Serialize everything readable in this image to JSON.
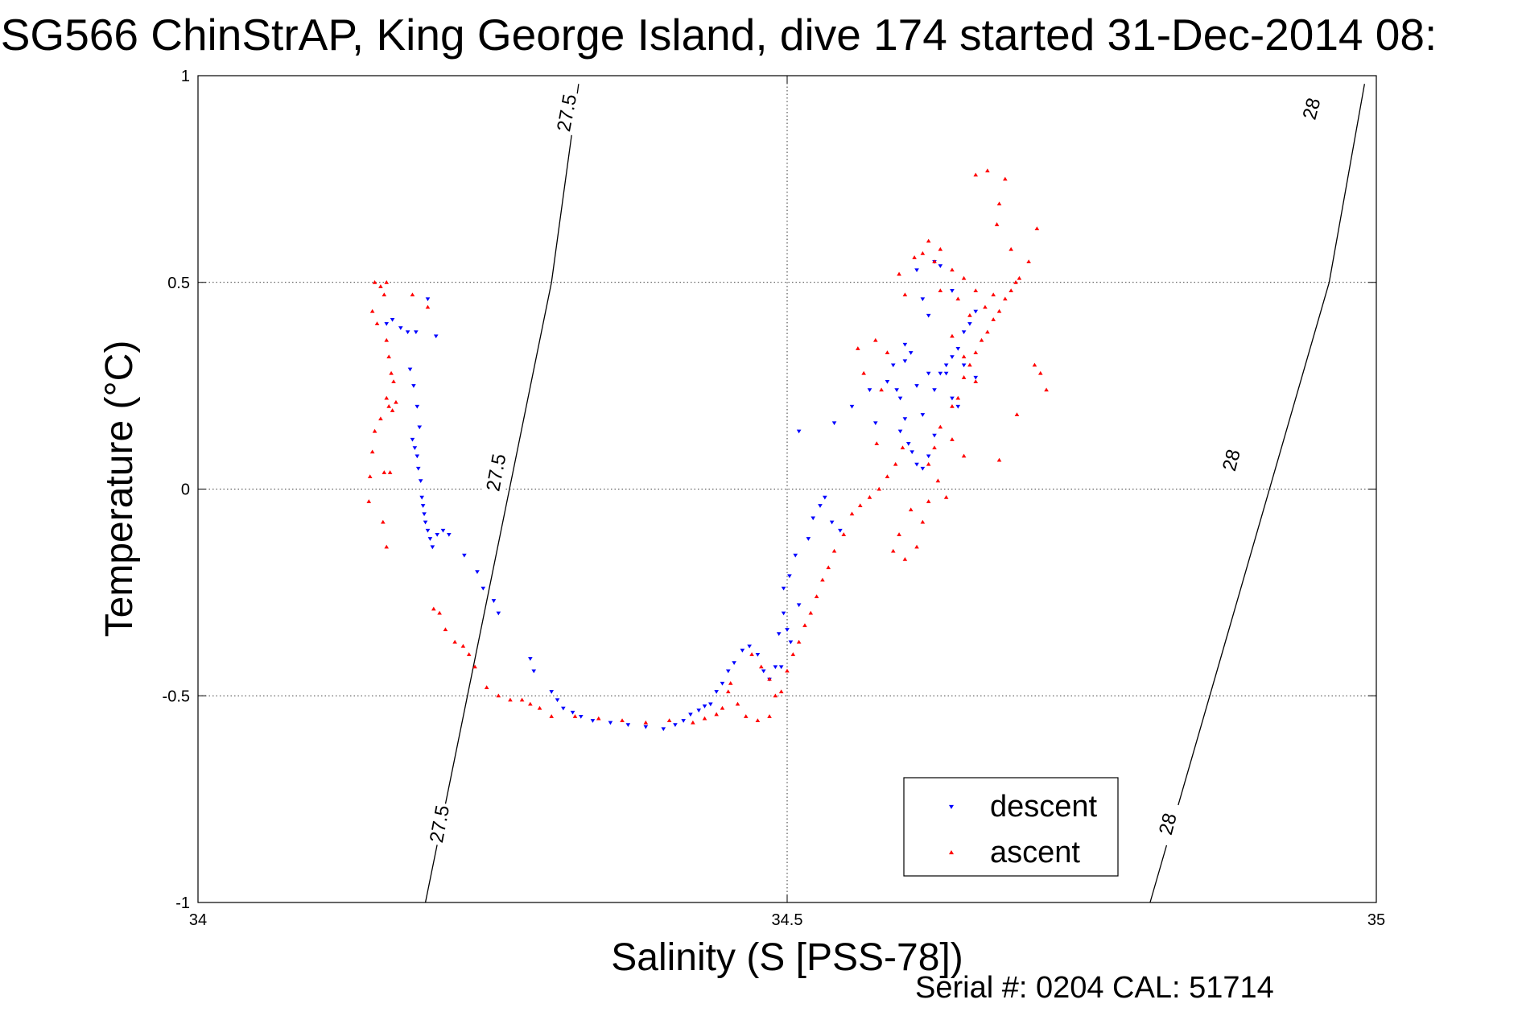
{
  "chart_data": {
    "type": "scatter",
    "title": "SG566 ChinStrAP, King George Island, dive 174 started 31-Dec-2014 08:",
    "xlabel": "Salinity (S [PSS-78])",
    "ylabel": "Temperature (°C)",
    "xlim": [
      34,
      35
    ],
    "ylim": [
      -1,
      1
    ],
    "xticks": [
      34,
      34.5,
      35
    ],
    "yticks": [
      -1,
      -0.5,
      0,
      0.5,
      1
    ],
    "xtick_labels": [
      "34",
      "34.5",
      "35"
    ],
    "ytick_labels": [
      "-1",
      "-0.5",
      "0",
      "0.5",
      "1"
    ],
    "grid": true,
    "legend_position": "bottom-right",
    "footer": "Serial #: 0204  CAL: 51714",
    "density_contours": [
      {
        "value": 27.5,
        "points": [
          [
            34.193,
            -1.0
          ],
          [
            34.3,
            0.5
          ],
          [
            34.323,
            0.98
          ]
        ],
        "labels": [
          {
            "text": "27.5",
            "x": 34.205,
            "y": -0.81
          },
          {
            "text": "27.5",
            "x": 34.253,
            "y": 0.04
          },
          {
            "text": "27.5",
            "x": 34.313,
            "y": 0.91
          }
        ]
      },
      {
        "value": 28,
        "points": [
          [
            34.808,
            -1.0
          ],
          [
            34.96,
            0.5
          ],
          [
            34.99,
            0.98
          ]
        ],
        "labels": [
          {
            "text": "28",
            "x": 34.823,
            "y": -0.81
          },
          {
            "text": "28",
            "x": 34.877,
            "y": 0.07
          },
          {
            "text": "28",
            "x": 34.945,
            "y": 0.92
          }
        ]
      }
    ],
    "series": [
      {
        "name": "descent",
        "color": "#0000ff",
        "marker": "triangle-down",
        "points": [
          [
            34.16,
            0.4
          ],
          [
            34.165,
            0.41
          ],
          [
            34.172,
            0.39
          ],
          [
            34.178,
            0.38
          ],
          [
            34.185,
            0.38
          ],
          [
            34.195,
            0.46
          ],
          [
            34.202,
            0.37
          ],
          [
            34.18,
            0.29
          ],
          [
            34.183,
            0.25
          ],
          [
            34.186,
            0.2
          ],
          [
            34.188,
            0.15
          ],
          [
            34.182,
            0.12
          ],
          [
            34.184,
            0.1
          ],
          [
            34.186,
            0.08
          ],
          [
            34.187,
            0.05
          ],
          [
            34.189,
            0.02
          ],
          [
            34.19,
            -0.02
          ],
          [
            34.191,
            -0.04
          ],
          [
            34.192,
            -0.06
          ],
          [
            34.193,
            -0.08
          ],
          [
            34.195,
            -0.1
          ],
          [
            34.197,
            -0.12
          ],
          [
            34.199,
            -0.14
          ],
          [
            34.203,
            -0.11
          ],
          [
            34.208,
            -0.1
          ],
          [
            34.213,
            -0.11
          ],
          [
            34.226,
            -0.16
          ],
          [
            34.237,
            -0.2
          ],
          [
            34.242,
            -0.24
          ],
          [
            34.251,
            -0.27
          ],
          [
            34.255,
            -0.3
          ],
          [
            34.282,
            -0.41
          ],
          [
            34.285,
            -0.44
          ],
          [
            34.3,
            -0.49
          ],
          [
            34.305,
            -0.51
          ],
          [
            34.31,
            -0.53
          ],
          [
            34.318,
            -0.54
          ],
          [
            34.325,
            -0.55
          ],
          [
            34.335,
            -0.56
          ],
          [
            34.35,
            -0.565
          ],
          [
            34.365,
            -0.57
          ],
          [
            34.38,
            -0.575
          ],
          [
            34.395,
            -0.58
          ],
          [
            34.405,
            -0.57
          ],
          [
            34.412,
            -0.56
          ],
          [
            34.418,
            -0.545
          ],
          [
            34.425,
            -0.535
          ],
          [
            34.43,
            -0.525
          ],
          [
            34.435,
            -0.52
          ],
          [
            34.44,
            -0.49
          ],
          [
            34.445,
            -0.47
          ],
          [
            34.45,
            -0.44
          ],
          [
            34.455,
            -0.42
          ],
          [
            34.462,
            -0.39
          ],
          [
            34.468,
            -0.38
          ],
          [
            34.475,
            -0.4
          ],
          [
            34.48,
            -0.44
          ],
          [
            34.485,
            -0.46
          ],
          [
            34.49,
            -0.43
          ],
          [
            34.495,
            -0.43
          ],
          [
            34.493,
            -0.35
          ],
          [
            34.497,
            -0.3
          ],
          [
            34.5,
            -0.34
          ],
          [
            34.503,
            -0.37
          ],
          [
            34.497,
            -0.24
          ],
          [
            34.502,
            -0.21
          ],
          [
            34.51,
            -0.28
          ],
          [
            34.507,
            -0.16
          ],
          [
            34.518,
            -0.12
          ],
          [
            34.522,
            -0.07
          ],
          [
            34.528,
            -0.04
          ],
          [
            34.532,
            -0.02
          ],
          [
            34.538,
            -0.08
          ],
          [
            34.545,
            -0.1
          ],
          [
            34.51,
            0.14
          ],
          [
            34.54,
            0.16
          ],
          [
            34.555,
            0.2
          ],
          [
            34.57,
            0.24
          ],
          [
            34.585,
            0.26
          ],
          [
            34.593,
            0.24
          ],
          [
            34.596,
            0.22
          ],
          [
            34.6,
            0.17
          ],
          [
            34.596,
            0.14
          ],
          [
            34.603,
            0.11
          ],
          [
            34.606,
            0.09
          ],
          [
            34.61,
            0.06
          ],
          [
            34.615,
            0.05
          ],
          [
            34.62,
            0.08
          ],
          [
            34.625,
            0.13
          ],
          [
            34.615,
            0.18
          ],
          [
            34.61,
            0.25
          ],
          [
            34.62,
            0.28
          ],
          [
            34.625,
            0.24
          ],
          [
            34.63,
            0.28
          ],
          [
            34.635,
            0.3
          ],
          [
            34.64,
            0.32
          ],
          [
            34.645,
            0.34
          ],
          [
            34.65,
            0.38
          ],
          [
            34.64,
            0.22
          ],
          [
            34.645,
            0.2
          ],
          [
            34.6,
            0.35
          ],
          [
            34.605,
            0.33
          ],
          [
            34.62,
            0.42
          ],
          [
            34.625,
            0.55
          ],
          [
            34.63,
            0.54
          ],
          [
            34.61,
            0.53
          ],
          [
            34.615,
            0.46
          ],
          [
            34.655,
            0.4
          ],
          [
            34.66,
            0.43
          ],
          [
            34.64,
            0.48
          ],
          [
            34.575,
            0.16
          ],
          [
            34.59,
            0.3
          ],
          [
            34.6,
            0.31
          ],
          [
            34.65,
            0.3
          ],
          [
            34.635,
            0.28
          ],
          [
            34.66,
            0.27
          ]
        ]
      },
      {
        "name": "ascent",
        "color": "#ff0000",
        "marker": "triangle-up",
        "points": [
          [
            34.15,
            0.5
          ],
          [
            34.155,
            0.49
          ],
          [
            34.16,
            0.5
          ],
          [
            34.158,
            0.47
          ],
          [
            34.148,
            0.43
          ],
          [
            34.152,
            0.4
          ],
          [
            34.16,
            0.36
          ],
          [
            34.162,
            0.32
          ],
          [
            34.164,
            0.28
          ],
          [
            34.166,
            0.26
          ],
          [
            34.16,
            0.22
          ],
          [
            34.162,
            0.2
          ],
          [
            34.165,
            0.19
          ],
          [
            34.168,
            0.21
          ],
          [
            34.155,
            0.17
          ],
          [
            34.15,
            0.14
          ],
          [
            34.148,
            0.09
          ],
          [
            34.158,
            0.04
          ],
          [
            34.163,
            0.04
          ],
          [
            34.146,
            0.03
          ],
          [
            34.145,
            -0.03
          ],
          [
            34.157,
            -0.08
          ],
          [
            34.16,
            -0.14
          ],
          [
            34.195,
            0.44
          ],
          [
            34.182,
            0.47
          ],
          [
            34.2,
            -0.29
          ],
          [
            34.205,
            -0.3
          ],
          [
            34.21,
            -0.34
          ],
          [
            34.218,
            -0.37
          ],
          [
            34.225,
            -0.38
          ],
          [
            34.23,
            -0.4
          ],
          [
            34.235,
            -0.43
          ],
          [
            34.245,
            -0.48
          ],
          [
            34.255,
            -0.5
          ],
          [
            34.265,
            -0.51
          ],
          [
            34.275,
            -0.51
          ],
          [
            34.282,
            -0.52
          ],
          [
            34.29,
            -0.53
          ],
          [
            34.3,
            -0.55
          ],
          [
            34.32,
            -0.55
          ],
          [
            34.34,
            -0.555
          ],
          [
            34.36,
            -0.56
          ],
          [
            34.38,
            -0.565
          ],
          [
            34.4,
            -0.56
          ],
          [
            34.42,
            -0.565
          ],
          [
            34.43,
            -0.555
          ],
          [
            34.44,
            -0.545
          ],
          [
            34.445,
            -0.53
          ],
          [
            34.45,
            -0.49
          ],
          [
            34.452,
            -0.47
          ],
          [
            34.458,
            -0.52
          ],
          [
            34.465,
            -0.55
          ],
          [
            34.475,
            -0.56
          ],
          [
            34.485,
            -0.55
          ],
          [
            34.49,
            -0.5
          ],
          [
            34.495,
            -0.49
          ],
          [
            34.47,
            -0.4
          ],
          [
            34.478,
            -0.43
          ],
          [
            34.485,
            -0.46
          ],
          [
            34.5,
            -0.44
          ],
          [
            34.505,
            -0.4
          ],
          [
            34.51,
            -0.37
          ],
          [
            34.515,
            -0.33
          ],
          [
            34.52,
            -0.3
          ],
          [
            34.525,
            -0.26
          ],
          [
            34.53,
            -0.22
          ],
          [
            34.535,
            -0.19
          ],
          [
            34.54,
            -0.15
          ],
          [
            34.548,
            -0.11
          ],
          [
            34.555,
            -0.06
          ],
          [
            34.562,
            -0.04
          ],
          [
            34.57,
            -0.02
          ],
          [
            34.578,
            0.0
          ],
          [
            34.585,
            0.03
          ],
          [
            34.592,
            0.06
          ],
          [
            34.598,
            0.1
          ],
          [
            34.605,
            -0.05
          ],
          [
            34.61,
            -0.14
          ],
          [
            34.615,
            -0.08
          ],
          [
            34.62,
            -0.03
          ],
          [
            34.628,
            0.02
          ],
          [
            34.635,
            -0.02
          ],
          [
            34.62,
            0.06
          ],
          [
            34.625,
            0.1
          ],
          [
            34.63,
            0.15
          ],
          [
            34.64,
            0.2
          ],
          [
            34.645,
            0.22
          ],
          [
            34.65,
            0.27
          ],
          [
            34.655,
            0.3
          ],
          [
            34.66,
            0.33
          ],
          [
            34.665,
            0.36
          ],
          [
            34.67,
            0.38
          ],
          [
            34.675,
            0.41
          ],
          [
            34.68,
            0.43
          ],
          [
            34.685,
            0.46
          ],
          [
            34.69,
            0.48
          ],
          [
            34.694,
            0.5
          ],
          [
            34.697,
            0.51
          ],
          [
            34.675,
            0.47
          ],
          [
            34.668,
            0.44
          ],
          [
            34.655,
            0.42
          ],
          [
            34.645,
            0.46
          ],
          [
            34.63,
            0.48
          ],
          [
            34.625,
            0.55
          ],
          [
            34.615,
            0.57
          ],
          [
            34.608,
            0.56
          ],
          [
            34.62,
            0.6
          ],
          [
            34.63,
            0.58
          ],
          [
            34.64,
            0.53
          ],
          [
            34.65,
            0.51
          ],
          [
            34.66,
            0.48
          ],
          [
            34.6,
            0.47
          ],
          [
            34.595,
            0.52
          ],
          [
            34.585,
            0.33
          ],
          [
            34.575,
            0.36
          ],
          [
            34.56,
            0.34
          ],
          [
            34.565,
            0.28
          ],
          [
            34.58,
            0.24
          ],
          [
            34.64,
            0.37
          ],
          [
            34.65,
            0.32
          ],
          [
            34.66,
            0.26
          ],
          [
            34.64,
            0.12
          ],
          [
            34.65,
            0.08
          ],
          [
            34.678,
            0.64
          ],
          [
            34.68,
            0.69
          ],
          [
            34.685,
            0.75
          ],
          [
            34.67,
            0.77
          ],
          [
            34.66,
            0.76
          ],
          [
            34.69,
            0.58
          ],
          [
            34.705,
            0.55
          ],
          [
            34.712,
            0.63
          ],
          [
            34.71,
            0.3
          ],
          [
            34.715,
            0.28
          ],
          [
            34.72,
            0.24
          ],
          [
            34.695,
            0.18
          ],
          [
            34.68,
            0.07
          ],
          [
            34.59,
            -0.15
          ],
          [
            34.6,
            -0.17
          ],
          [
            34.595,
            -0.11
          ],
          [
            34.576,
            0.11
          ]
        ]
      }
    ]
  }
}
